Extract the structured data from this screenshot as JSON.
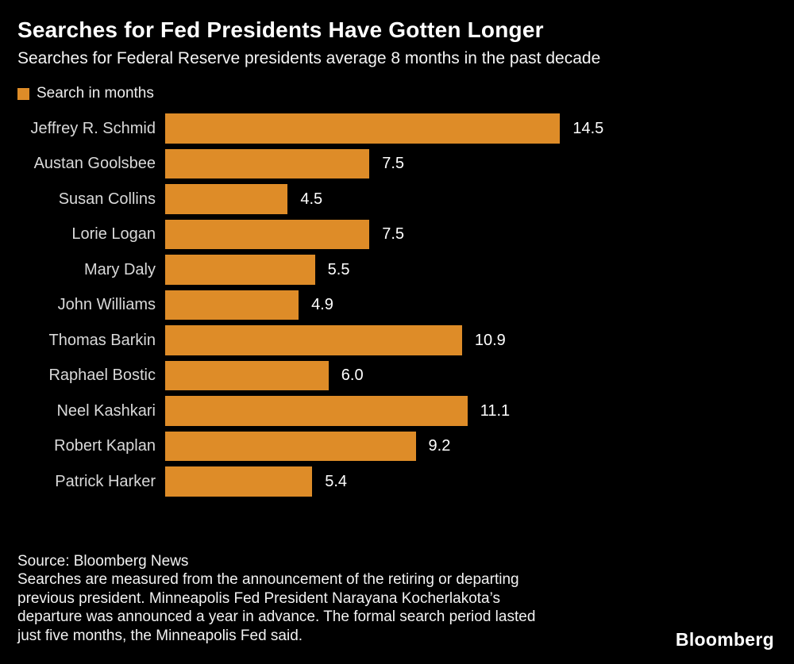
{
  "header": {
    "title": "Searches for Fed Presidents Have Gotten Longer",
    "subtitle": "Searches for Federal Reserve presidents average 8 months in the past decade"
  },
  "legend": {
    "label": "Search in months",
    "swatch_color": "#de8c28"
  },
  "chart_data": {
    "type": "bar",
    "orientation": "horizontal",
    "title": "Searches for Fed Presidents Have Gotten Longer",
    "subtitle": "Searches for Federal Reserve presidents average 8 months in the past decade",
    "series_label": "Search in months",
    "categories": [
      "Jeffrey R. Schmid",
      "Austan Goolsbee",
      "Susan Collins",
      "Lorie Logan",
      "Mary Daly",
      "John Williams",
      "Thomas Barkin",
      "Raphael Bostic",
      "Neel Kashkari",
      "Robert Kaplan",
      "Patrick Harker"
    ],
    "values": [
      14.5,
      7.5,
      4.5,
      7.5,
      5.5,
      4.9,
      10.9,
      6.0,
      11.1,
      9.2,
      5.4
    ],
    "value_labels": [
      "14.5",
      "7.5",
      "4.5",
      "7.5",
      "5.5",
      "4.9",
      "10.9",
      "6.0",
      "11.1",
      "9.2",
      "5.4"
    ],
    "xlim": [
      0,
      14.5
    ],
    "bar_color": "#de8c28",
    "background_color": "#000000",
    "grid": false,
    "legend_position": "top-left",
    "value_labels_shown": true
  },
  "footer": {
    "source": "Source: Bloomberg News",
    "note": "Searches are measured from the announcement of the retiring or departing\nprevious president. Minneapolis Fed President Narayana Kocherlakota’s\ndeparture was announced a year in advance. The formal search period lasted\njust five months, the Minneapolis Fed said.",
    "logo": "Bloomberg"
  }
}
